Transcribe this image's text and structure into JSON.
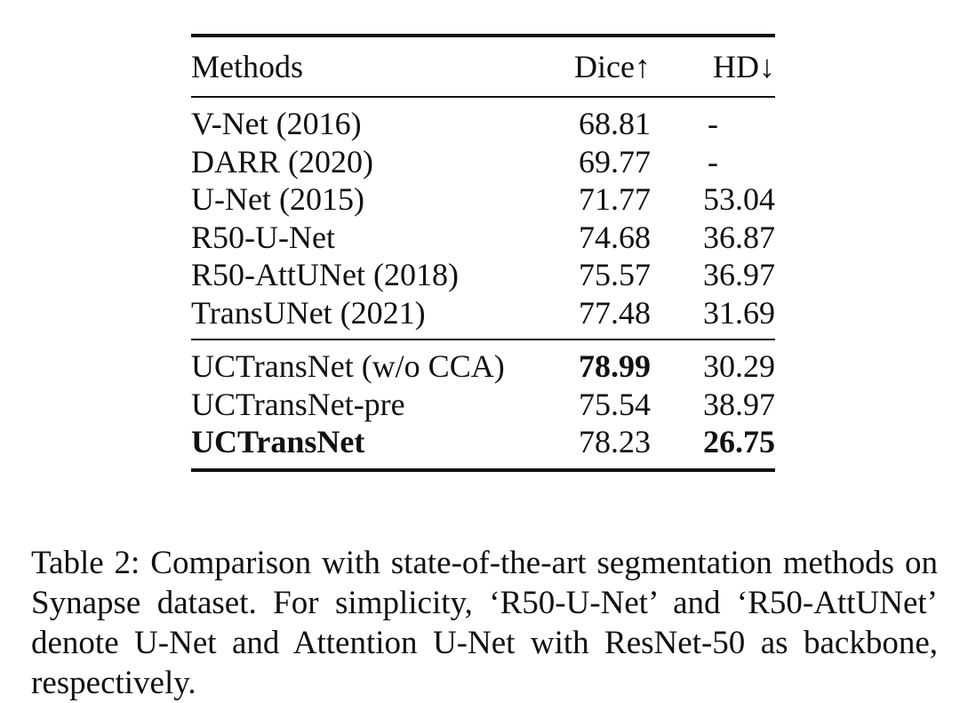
{
  "table": {
    "headers": {
      "method": "Methods",
      "dice": "Dice↑",
      "hd": "HD↓"
    },
    "group1": [
      {
        "method": "V-Net (2016)",
        "dice": "68.81",
        "hd": "-"
      },
      {
        "method": "DARR (2020)",
        "dice": "69.77",
        "hd": "-"
      },
      {
        "method": "U-Net (2015)",
        "dice": "71.77",
        "hd": "53.04"
      },
      {
        "method": "R50-U-Net",
        "dice": "74.68",
        "hd": "36.87"
      },
      {
        "method": "R50-AttUNet (2018)",
        "dice": "75.57",
        "hd": "36.97"
      },
      {
        "method": "TransUNet (2021)",
        "dice": "77.48",
        "hd": "31.69"
      }
    ],
    "group2": [
      {
        "method": "UCTransNet (w/o CCA)",
        "dice": "78.99",
        "hd": "30.29",
        "bold": [
          "dice"
        ]
      },
      {
        "method": "UCTransNet-pre",
        "dice": "75.54",
        "hd": "38.97",
        "bold": []
      },
      {
        "method": "UCTransNet",
        "dice": "78.23",
        "hd": "26.75",
        "bold": [
          "method",
          "hd"
        ]
      }
    ]
  },
  "caption": "Table 2: Comparison with state-of-the-art segmentation methods on Synapse dataset. For simplicity, ‘R50-U-Net’ and ‘R50-AttUNet’ denote U-Net and Attention U-Net with ResNet-50 as backbone, respectively."
}
